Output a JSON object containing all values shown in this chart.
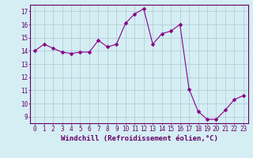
{
  "x": [
    0,
    1,
    2,
    3,
    4,
    5,
    6,
    7,
    8,
    9,
    10,
    11,
    12,
    13,
    14,
    15,
    16,
    17,
    18,
    19,
    20,
    21,
    22,
    23
  ],
  "y": [
    14.0,
    14.5,
    14.2,
    13.9,
    13.8,
    13.9,
    13.9,
    14.8,
    14.3,
    14.5,
    16.1,
    16.8,
    17.2,
    14.5,
    15.3,
    15.5,
    16.0,
    11.1,
    9.4,
    8.8,
    8.8,
    9.5,
    10.3,
    10.6
  ],
  "xlim": [
    -0.5,
    23.5
  ],
  "ylim": [
    8.5,
    17.5
  ],
  "yticks": [
    9,
    10,
    11,
    12,
    13,
    14,
    15,
    16,
    17
  ],
  "xticks": [
    0,
    1,
    2,
    3,
    4,
    5,
    6,
    7,
    8,
    9,
    10,
    11,
    12,
    13,
    14,
    15,
    16,
    17,
    18,
    19,
    20,
    21,
    22,
    23
  ],
  "xlabel": "Windchill (Refroidissement éolien,°C)",
  "line_color": "#880088",
  "marker": "D",
  "marker_size": 2.5,
  "background_color": "#d4eef4",
  "grid_color": "#b0c8d0",
  "text_color": "#660066",
  "tick_fontsize": 5.5,
  "xlabel_fontsize": 6.5
}
